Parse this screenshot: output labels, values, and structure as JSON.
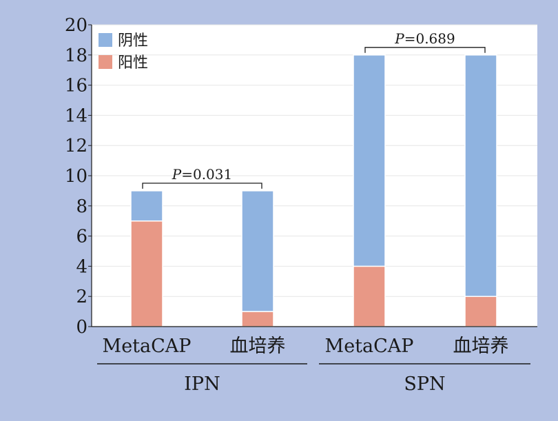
{
  "chart_data": {
    "type": "bar",
    "stacked": true,
    "ylim": [
      0,
      20
    ],
    "yticks": [
      0,
      2,
      4,
      6,
      8,
      10,
      12,
      14,
      16,
      18,
      20
    ],
    "grid": true,
    "legend_position": "top-left",
    "categories": [
      "MetaCAP",
      "血培养",
      "MetaCAP",
      "血培养"
    ],
    "groups": [
      {
        "label": "IPN",
        "categories": [
          "MetaCAP",
          "血培养"
        ]
      },
      {
        "label": "SPN",
        "categories": [
          "MetaCAP",
          "血培养"
        ]
      }
    ],
    "series": [
      {
        "name": "阳性",
        "color": "#e89886",
        "values": [
          7,
          1,
          4,
          2
        ]
      },
      {
        "name": "阴性",
        "color": "#8fb3e0",
        "values": [
          2,
          8,
          14,
          16
        ]
      }
    ],
    "legend": [
      {
        "name": "阴性",
        "color": "#8fb3e0"
      },
      {
        "name": "阳性",
        "color": "#e89886"
      }
    ],
    "annotations": [
      {
        "group": "IPN",
        "p_label": "P",
        "p_value": "=0.031"
      },
      {
        "group": "SPN",
        "p_label": "P",
        "p_value": "=0.689"
      }
    ]
  }
}
